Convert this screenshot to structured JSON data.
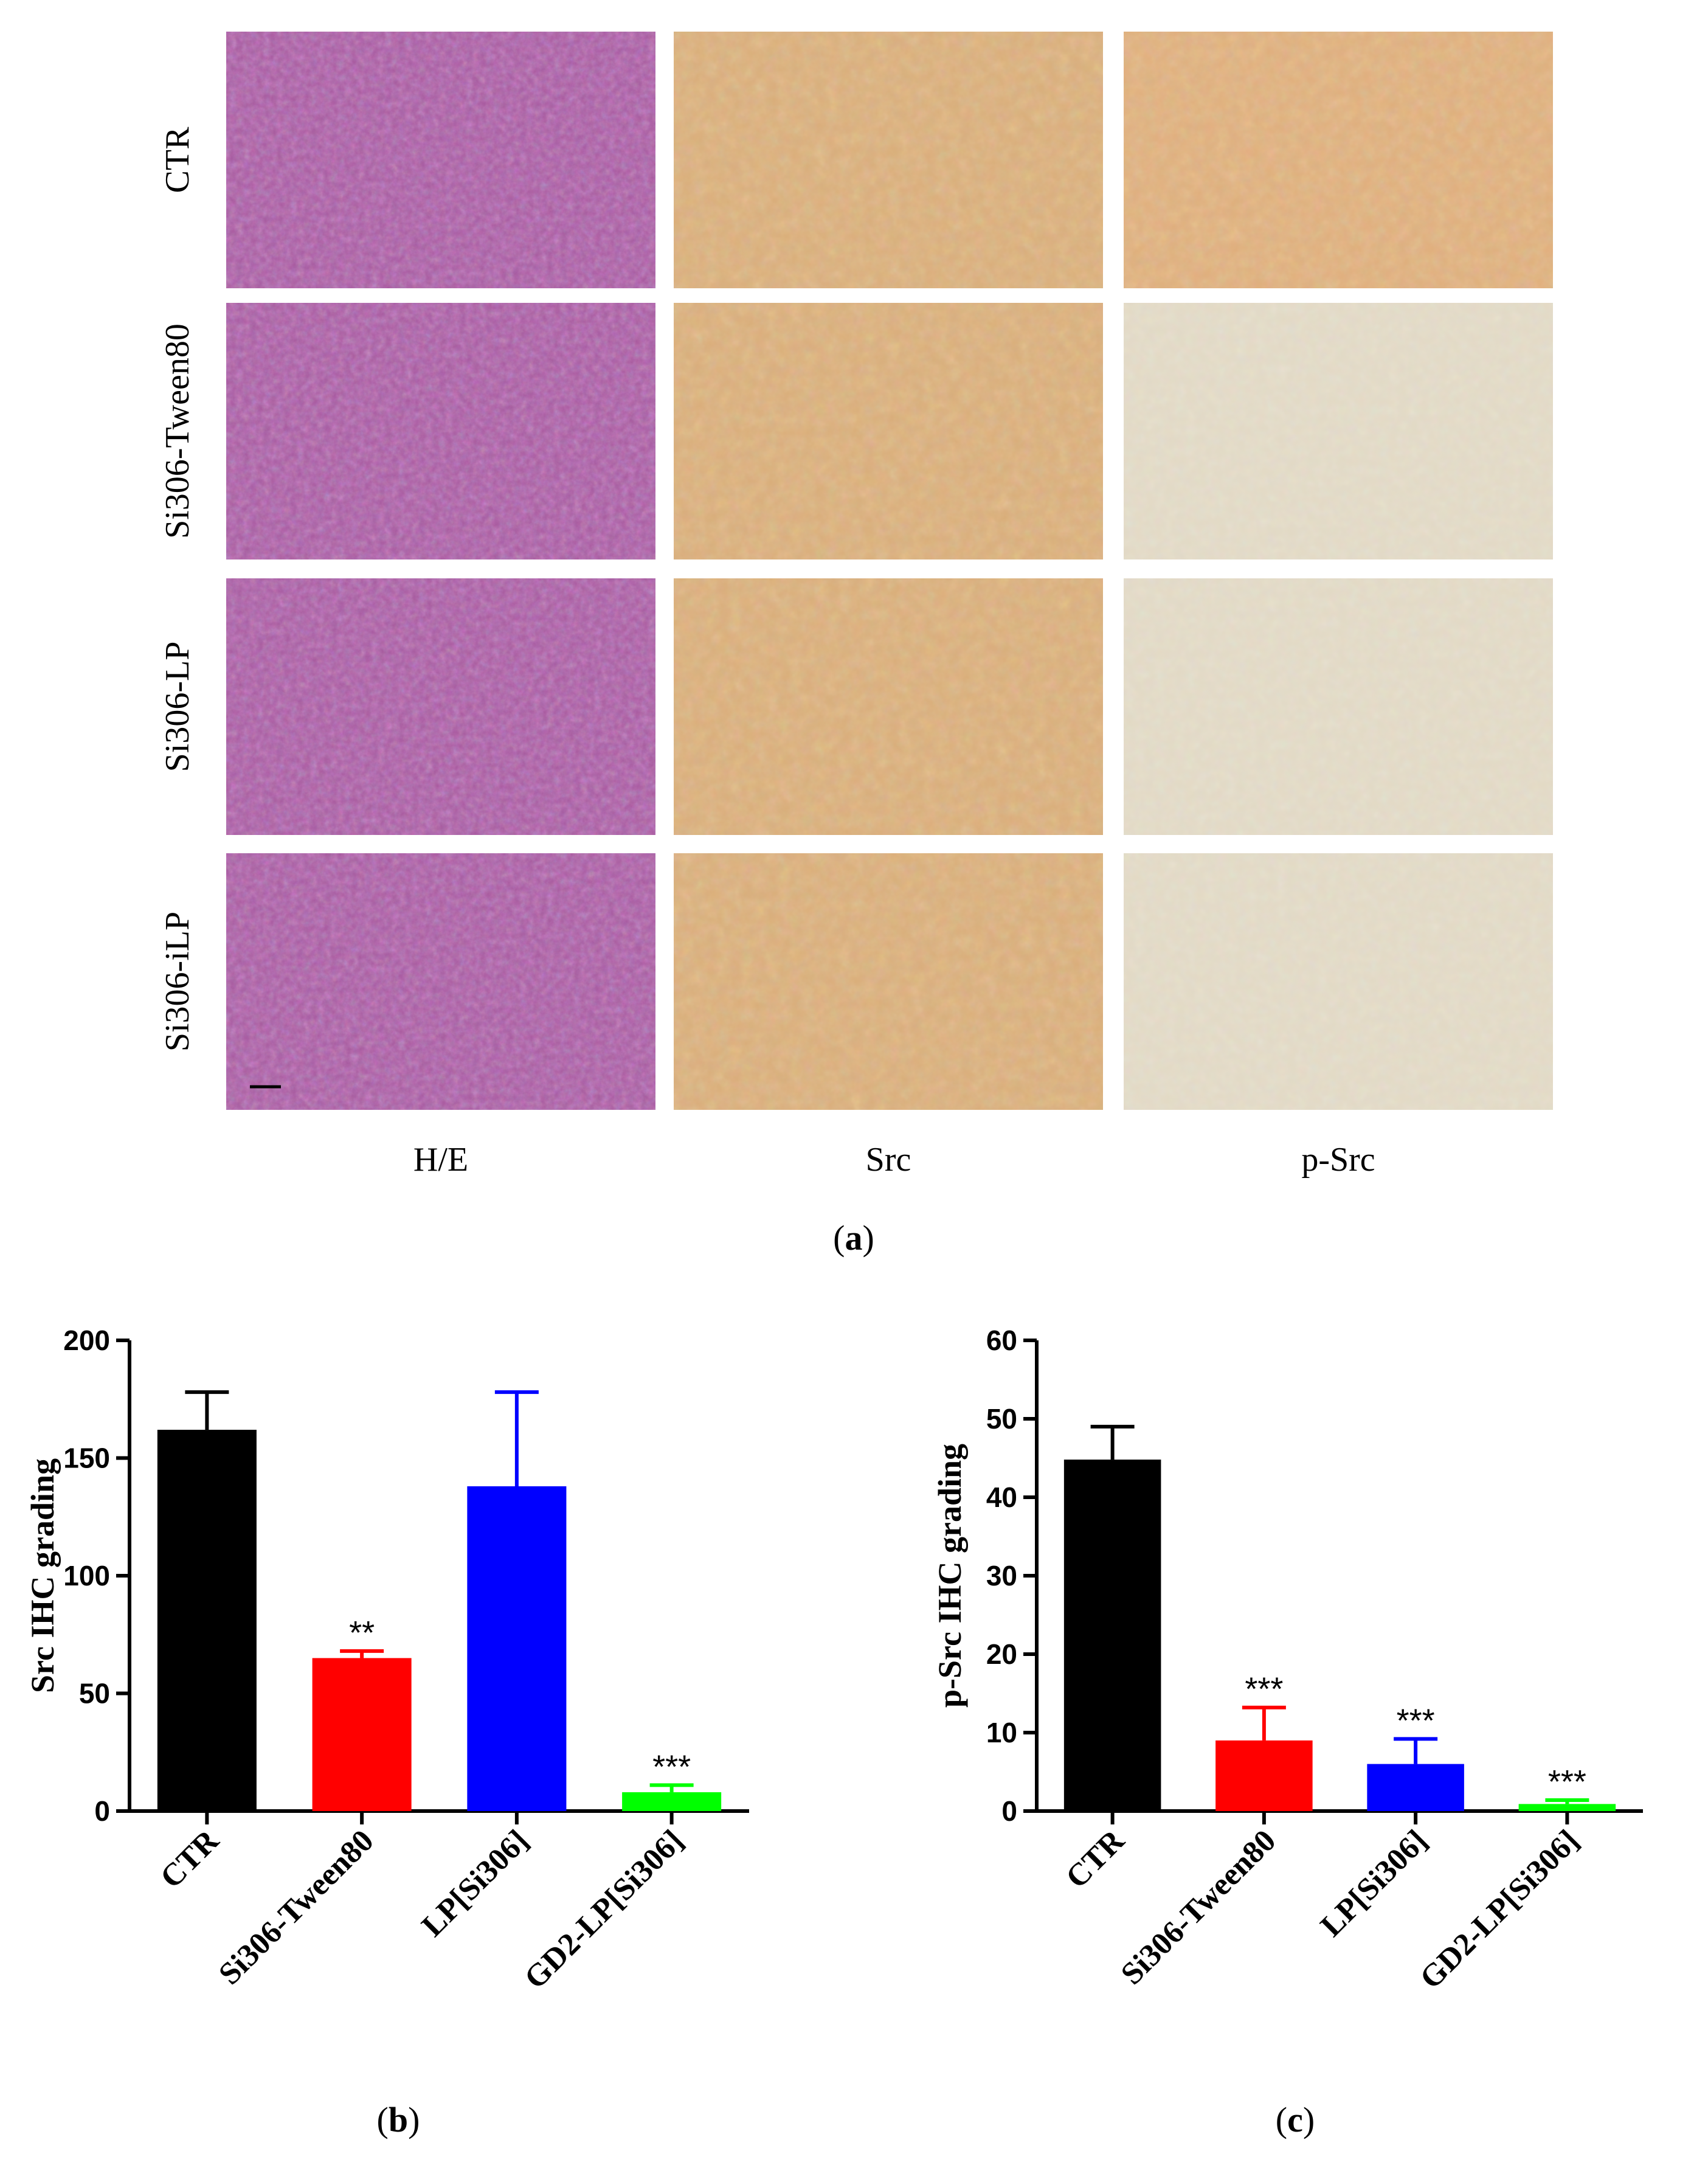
{
  "figure": {
    "panel_a_label": "(a)",
    "panel_a_letter": "a",
    "panel_b_letter": "b",
    "panel_c_letter": "c",
    "row_labels": [
      "CTR",
      "Si306-Tween80",
      "Si306-LP",
      "Si306-iLP"
    ],
    "column_labels": [
      "H/E",
      "Src",
      "p-Src"
    ],
    "stain_colors": {
      "he": "#a7599e",
      "he_light": "#c77fb0",
      "src": "#d9ad79",
      "src_light": "#ead2ab",
      "psrc_strong": "#dfae7b",
      "psrc_light": "#e2d9c4"
    },
    "micrograph_tones": [
      [
        "he",
        "src",
        "psrc_strong"
      ],
      [
        "he",
        "src",
        "psrc_light"
      ],
      [
        "he",
        "src",
        "psrc_light"
      ],
      [
        "he",
        "src",
        "psrc_light"
      ]
    ]
  },
  "chart_data": [
    {
      "panel": "b",
      "type": "bar",
      "title": "",
      "xlabel": "",
      "ylabel": "Src IHC grading",
      "categories": [
        "CTR",
        "Si306-Tween80",
        "LP[Si306]",
        "GD2-LP[Si306]"
      ],
      "values": [
        162,
        65,
        138,
        8
      ],
      "errors": [
        16,
        3,
        40,
        3
      ],
      "colors": [
        "#000000",
        "#ff0000",
        "#0000ff",
        "#00ff00"
      ],
      "significance": [
        "",
        "**",
        "",
        "***"
      ],
      "ylim": [
        0,
        200
      ],
      "yticks": [
        0,
        50,
        100,
        150,
        200
      ],
      "grid": false
    },
    {
      "panel": "c",
      "type": "bar",
      "title": "",
      "xlabel": "",
      "ylabel": "p-Src IHC grading",
      "categories": [
        "CTR",
        "Si306-Tween80",
        "LP[Si306]",
        "GD2-LP[Si306]"
      ],
      "values": [
        44.8,
        9,
        6,
        0.9
      ],
      "errors": [
        4.2,
        4.2,
        3.2,
        0.5
      ],
      "colors": [
        "#000000",
        "#ff0000",
        "#0000ff",
        "#00ff00"
      ],
      "significance": [
        "",
        "***",
        "***",
        "***"
      ],
      "ylim": [
        0,
        60
      ],
      "yticks": [
        0,
        10,
        20,
        30,
        40,
        50,
        60
      ],
      "grid": false
    }
  ]
}
